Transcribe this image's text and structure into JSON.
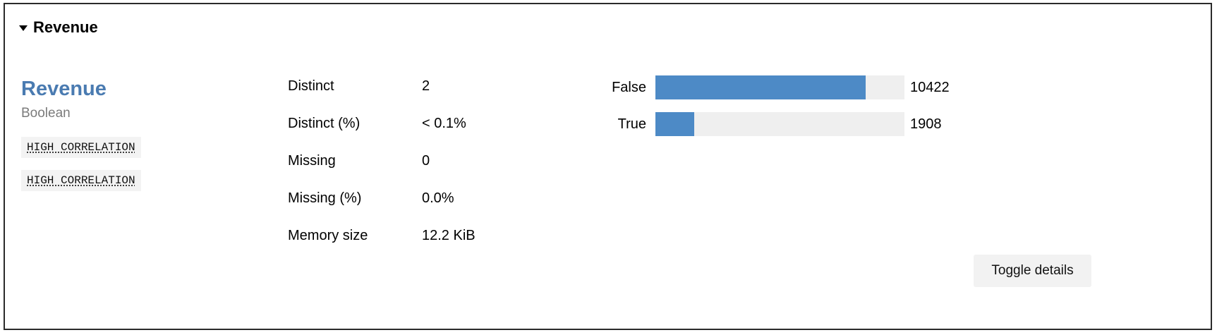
{
  "header": {
    "title": "Revenue"
  },
  "variable": {
    "name": "Revenue",
    "type": "Boolean",
    "tags": [
      "HIGH CORRELATION",
      "HIGH CORRELATION"
    ]
  },
  "stats": [
    {
      "label": "Distinct",
      "value": "2"
    },
    {
      "label": "Distinct (%)",
      "value": "< 0.1%"
    },
    {
      "label": "Missing",
      "value": "0"
    },
    {
      "label": "Missing (%)",
      "value": "0.0%"
    },
    {
      "label": "Memory size",
      "value": "12.2 KiB"
    }
  ],
  "frequencies": [
    {
      "label": "False",
      "count": "10422",
      "fraction": 0.8453
    },
    {
      "label": "True",
      "count": "1908",
      "fraction": 0.1547
    }
  ],
  "toggle": {
    "label": "Toggle details"
  },
  "colors": {
    "accent": "#4a7bb1",
    "bar": "#4d8ac6",
    "bar_track": "#efefef"
  }
}
